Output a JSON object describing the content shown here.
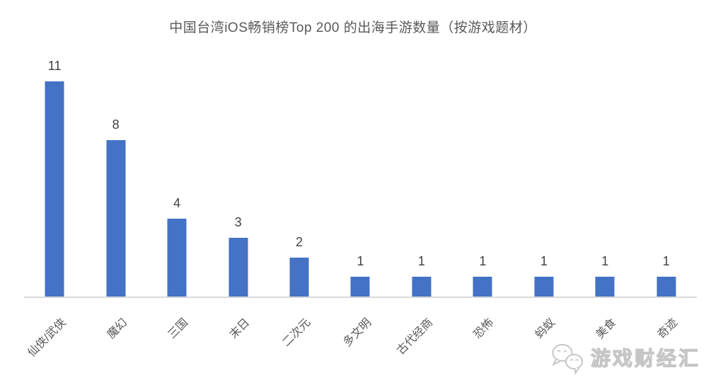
{
  "chart_data": {
    "type": "bar",
    "title": "中国台湾iOS畅销榜Top 200 的出海手游数量（按游戏题材）",
    "categories": [
      "仙侠/武侠",
      "魔幻",
      "三国",
      "末日",
      "二次元",
      "多文明",
      "古代经商",
      "恐怖",
      "蚂蚁",
      "美食",
      "奇迹"
    ],
    "values": [
      11,
      8,
      4,
      3,
      2,
      1,
      1,
      1,
      1,
      1,
      1
    ],
    "xlabel": "",
    "ylabel": "",
    "ylim": [
      0,
      12
    ],
    "grid": false,
    "legend": "none",
    "value_labels_shown": true,
    "category_label_rotation_deg": 45
  },
  "watermark": {
    "text": "游戏财经汇",
    "icon": "wechat-icon"
  },
  "colors": {
    "bar": "#4472C4",
    "title_text": "#595959",
    "value_label": "#404040",
    "category_label": "#595959",
    "axis_line": "#D9D9D9",
    "watermark": "#C6C6C6",
    "background": "#FFFFFF"
  }
}
